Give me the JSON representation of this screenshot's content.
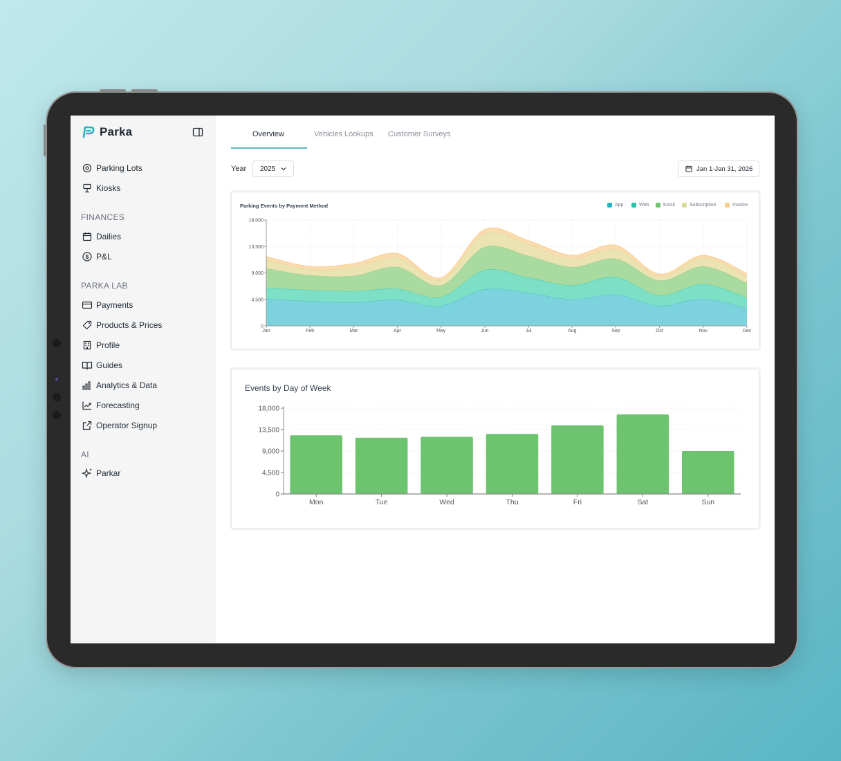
{
  "app": {
    "name": "Parka",
    "accent": "#2ab0c0"
  },
  "sidebar": {
    "items": [
      {
        "label": "Parking Lots",
        "icon": "location-pin-icon"
      },
      {
        "label": "Kiosks",
        "icon": "kiosk-icon"
      }
    ],
    "sections": [
      {
        "title": "FINANCES",
        "items": [
          {
            "label": "Dailies",
            "icon": "calendar-icon"
          },
          {
            "label": "P&L",
            "icon": "dollar-circle-icon"
          }
        ]
      },
      {
        "title": "PARKA LAB",
        "items": [
          {
            "label": "Payments",
            "icon": "credit-card-icon"
          },
          {
            "label": "Products & Prices",
            "icon": "tag-icon"
          },
          {
            "label": "Profile",
            "icon": "building-icon"
          },
          {
            "label": "Guides",
            "icon": "book-icon"
          },
          {
            "label": "Analytics & Data",
            "icon": "bar-chart-icon"
          },
          {
            "label": "Forecasting",
            "icon": "trend-icon"
          },
          {
            "label": "Operator Signup",
            "icon": "external-link-icon"
          }
        ]
      },
      {
        "title": "AI",
        "items": [
          {
            "label": "Parkar",
            "icon": "sparkle-icon"
          }
        ]
      }
    ]
  },
  "tabs": [
    {
      "label": "Overview",
      "active": true
    },
    {
      "label": "Vehicles Lookups",
      "active": false
    },
    {
      "label": "Customer Surveys",
      "active": false
    }
  ],
  "filters": {
    "year_label": "Year",
    "year_value": "2025",
    "date_range": "Jan 1-Jan 31, 2026"
  },
  "chart_data": [
    {
      "type": "area",
      "stacked": true,
      "title": "Parking Events by Payment Method",
      "categories": [
        "Jan",
        "Feb",
        "Mar",
        "Apr",
        "May",
        "Jun",
        "Jul",
        "Aug",
        "Sep",
        "Oct",
        "Nov",
        "Dec"
      ],
      "ylim": [
        0,
        18000
      ],
      "yticks": [
        "18,000",
        "13,500",
        "9,000",
        "4,500",
        "0"
      ],
      "grid": true,
      "legend_position": "top-right",
      "series": [
        {
          "name": "App",
          "color": "#7dd3dd",
          "values": [
            4600,
            4200,
            4000,
            4400,
            3400,
            6200,
            5600,
            4500,
            5300,
            3400,
            4600,
            3000
          ]
        },
        {
          "name": "Web",
          "color": "#7ddfc6",
          "values": [
            1900,
            1900,
            1900,
            1900,
            1500,
            3300,
            2600,
            2400,
            3000,
            1800,
            2500,
            1800
          ]
        },
        {
          "name": "Kiosk",
          "color": "#a9dba0",
          "values": [
            3300,
            2500,
            2600,
            3700,
            2000,
            3900,
            3700,
            3100,
            3100,
            2500,
            3000,
            2500
          ]
        },
        {
          "name": "Subscription",
          "color": "#ece3b2",
          "values": [
            1500,
            1000,
            1500,
            1600,
            900,
            2300,
            2000,
            1400,
            1600,
            700,
            1400,
            1100
          ]
        },
        {
          "name": "Invoice",
          "color": "#fbdcae",
          "values": [
            500,
            500,
            600,
            700,
            400,
            700,
            600,
            600,
            700,
            400,
            500,
            500
          ]
        }
      ]
    },
    {
      "type": "bar",
      "title": "Events by Day of Week",
      "categories": [
        "Mon",
        "Tue",
        "Wed",
        "Thu",
        "Fri",
        "Sat",
        "Sun"
      ],
      "values": [
        12300,
        11800,
        12000,
        12600,
        14400,
        16700,
        9000
      ],
      "ylim": [
        0,
        18000
      ],
      "yticks": [
        "18,000",
        "13,500",
        "9,000",
        "4,500",
        "0"
      ],
      "grid": true,
      "color": "#6cc46f"
    }
  ]
}
